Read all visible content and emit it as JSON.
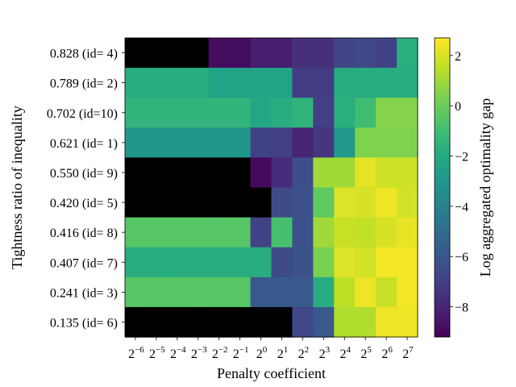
{
  "chart_data": {
    "type": "heatmap",
    "xlabel": "Penalty coefficient",
    "ylabel": "Tightness ratio of inequality",
    "colorbar_label": "Log aggregated optimality gap",
    "colormap": "viridis",
    "missing_color": "#000000",
    "x_tick_base": "2",
    "x_exponents": [
      "−6",
      "−5",
      "−4",
      "−3",
      "−2",
      "−1",
      "0",
      "1",
      "2",
      "3",
      "4",
      "5",
      "6",
      "7"
    ],
    "y_labels": [
      "0.828 (id= 4)",
      "0.789 (id= 2)",
      "0.702 (id=10)",
      "0.621 (id= 1)",
      "0.550 (id= 9)",
      "0.420 (id= 5)",
      "0.416 (id= 8)",
      "0.407 (id= 7)",
      "0.241 (id= 3)",
      "0.135 (id= 6)"
    ],
    "colorbar_ticks": [
      2,
      0,
      -2,
      -4,
      -6,
      -8
    ],
    "colorbar_tick_labels": [
      "2",
      "0",
      "−2",
      "−4",
      "−6",
      "−8"
    ],
    "vmin": -9.2,
    "vmax": 2.7,
    "values": [
      [
        null,
        null,
        null,
        null,
        -8.8,
        -8.8,
        -8.2,
        -8.2,
        -7.6,
        -7.6,
        -6.8,
        -6.6,
        -6.9,
        -1.7
      ],
      [
        -1.8,
        -1.8,
        -1.8,
        -1.8,
        -2.3,
        -2.3,
        -2.3,
        -2.3,
        -7.1,
        -7.1,
        -1.9,
        -1.9,
        -1.8,
        -1.8
      ],
      [
        -1.5,
        -1.5,
        -1.5,
        -1.5,
        -1.5,
        -1.5,
        -2.1,
        -1.8,
        -1.5,
        -7.0,
        -1.7,
        -1.0,
        0.5,
        0.5
      ],
      [
        -3.0,
        -3.0,
        -3.0,
        -3.0,
        -3.0,
        -3.0,
        -6.9,
        -7.0,
        -8.0,
        -7.3,
        -2.9,
        0.4,
        0.4,
        0.4
      ],
      [
        null,
        null,
        null,
        null,
        null,
        null,
        -8.9,
        -7.7,
        -6.4,
        1.0,
        1.0,
        2.2,
        1.8,
        1.8
      ],
      [
        null,
        null,
        null,
        null,
        null,
        null,
        null,
        -6.5,
        -6.3,
        -0.3,
        2.1,
        2.0,
        2.4,
        1.9
      ],
      [
        -0.5,
        -0.5,
        -0.5,
        -0.5,
        -0.5,
        -0.5,
        -6.9,
        -0.8,
        -6.3,
        1.0,
        1.7,
        1.6,
        2.0,
        2.3
      ],
      [
        -1.8,
        -1.8,
        -1.8,
        -1.8,
        -1.8,
        -1.8,
        -1.8,
        -6.5,
        -6.2,
        0.3,
        2.1,
        1.9,
        2.5,
        2.5
      ],
      [
        -0.5,
        -0.5,
        -0.5,
        -0.5,
        -0.5,
        -0.5,
        -5.9,
        -5.9,
        -5.9,
        -1.8,
        1.5,
        2.4,
        1.7,
        2.5
      ],
      [
        null,
        null,
        null,
        null,
        null,
        null,
        null,
        null,
        -6.6,
        -5.9,
        1.3,
        1.3,
        2.4,
        2.4
      ]
    ]
  }
}
